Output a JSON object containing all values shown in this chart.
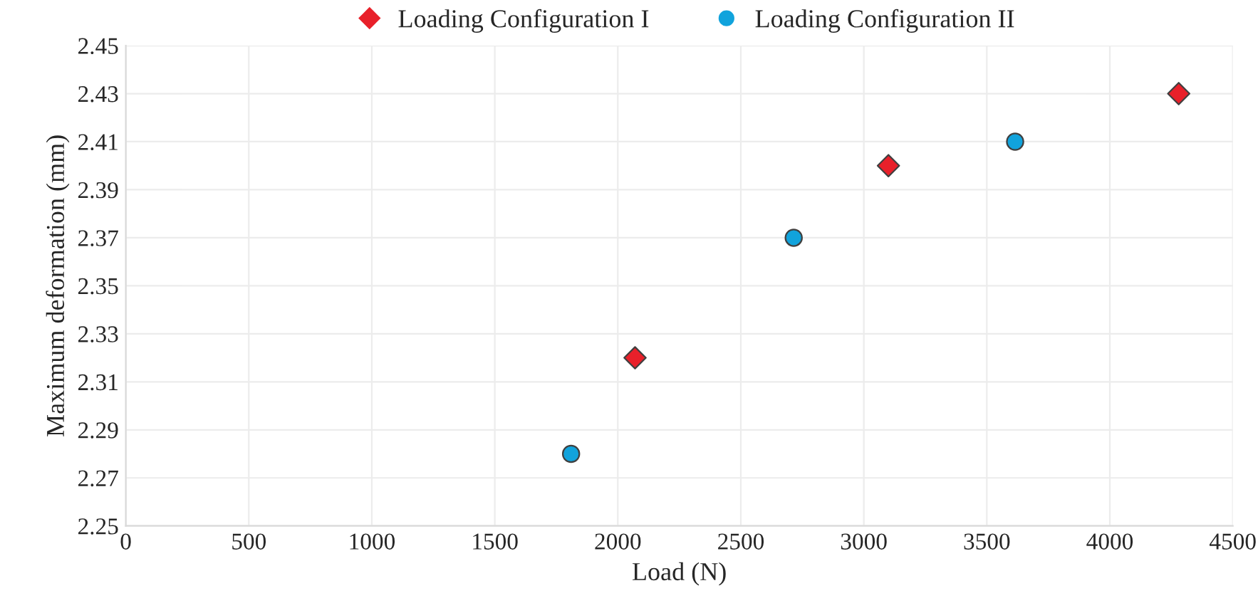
{
  "chart_data": {
    "type": "scatter",
    "xlabel": "Load (N)",
    "ylabel": "Maximum deformation (mm)",
    "series": [
      {
        "name": "Loading Configuration I",
        "color": "#e8202a",
        "marker": "diamond",
        "x": [
          2070,
          3100,
          4280
        ],
        "values": [
          2.32,
          2.4,
          2.43
        ]
      },
      {
        "name": "Loading Configuration II",
        "color": "#11a3dc",
        "marker": "circle",
        "x": [
          1810,
          2715,
          3615
        ],
        "values": [
          2.28,
          2.37,
          2.41
        ]
      }
    ],
    "xlim": [
      0,
      4500
    ],
    "xticks": [
      0,
      500,
      1000,
      1500,
      2000,
      2500,
      3000,
      3500,
      4000,
      4500
    ],
    "ylim": [
      2.25,
      2.45
    ],
    "yticks": [
      {
        "value": 2.25,
        "label": "2.25"
      },
      {
        "value": 2.27,
        "label": "2.27"
      },
      {
        "value": 2.29,
        "label": "2.29"
      },
      {
        "value": 2.31,
        "label": "2.31"
      },
      {
        "value": 2.33,
        "label": "2.33"
      },
      {
        "value": 2.35,
        "label": "2.35"
      },
      {
        "value": 2.37,
        "label": "2.37"
      },
      {
        "value": 2.39,
        "label": "2.39"
      },
      {
        "value": 2.41,
        "label": "2.41"
      },
      {
        "value": 2.43,
        "label": "2.43"
      },
      {
        "value": 2.45,
        "label": "2.45"
      }
    ],
    "grid": true,
    "legend": "top"
  }
}
